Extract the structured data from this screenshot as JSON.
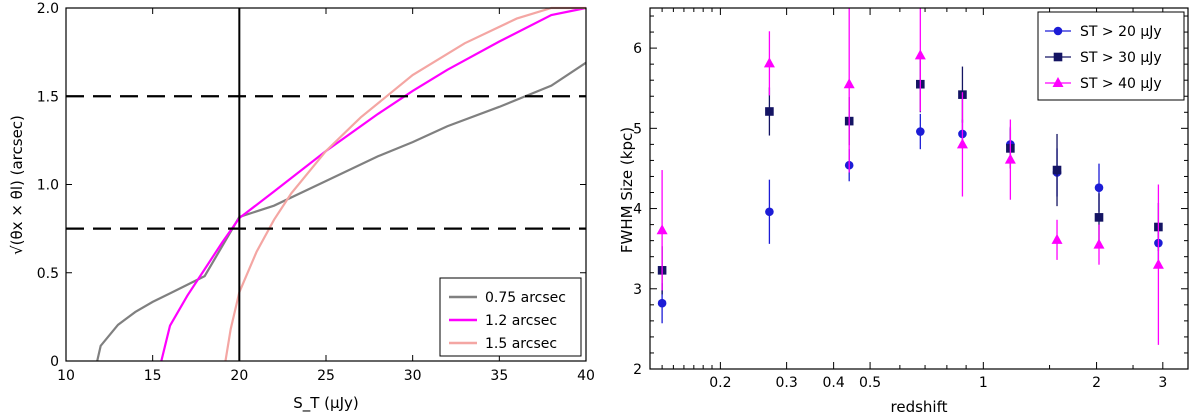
{
  "chart_data": [
    {
      "type": "line",
      "xlabel": "S_T (μJy)",
      "ylabel": "√(θx × θl) (arcsec)",
      "xlim": [
        10,
        40
      ],
      "ylim": [
        0,
        2.0
      ],
      "xticks": [
        10,
        15,
        20,
        25,
        30,
        35,
        40
      ],
      "xtick_labels": [
        "10",
        "15",
        "20",
        "25",
        "30",
        "35",
        "40"
      ],
      "yticks": [
        0,
        0.5,
        1.0,
        1.5,
        2.0
      ],
      "ytick_labels": [
        "0",
        "0.5",
        "1.0",
        "1.5",
        "2.0"
      ],
      "hlines_dashed": [
        0.75,
        1.5
      ],
      "vline_solid": 20,
      "legend_position": "bottom-right",
      "series": [
        {
          "name": "0.75 arcsec",
          "color": "#808080",
          "x0": 11.8,
          "x": [
            11.8,
            12,
            13,
            14,
            15,
            16,
            18,
            20,
            22,
            25,
            28,
            30,
            32,
            35,
            38,
            40
          ],
          "y": [
            0.0,
            0.086,
            0.205,
            0.278,
            0.335,
            0.383,
            0.481,
            0.816,
            0.88,
            1.02,
            1.16,
            1.24,
            1.33,
            1.44,
            1.56,
            1.69
          ]
        },
        {
          "name": "1.2 arcsec",
          "color": "#ff00ff",
          "x0": 15.5,
          "x": [
            15.5,
            16,
            17,
            18,
            19,
            20,
            22,
            25,
            28,
            30,
            32,
            35,
            38,
            40
          ],
          "y": [
            0.0,
            0.2,
            0.37,
            0.52,
            0.67,
            0.81,
            0.96,
            1.19,
            1.4,
            1.53,
            1.65,
            1.81,
            1.96,
            2.06
          ]
        },
        {
          "name": "1.5 arcsec",
          "color": "#f4a6a3",
          "x0": 19.2,
          "x": [
            19.2,
            19.5,
            20,
            21,
            22,
            23,
            25,
            27,
            30,
            33,
            36,
            38,
            40
          ],
          "y": [
            0.0,
            0.18,
            0.39,
            0.62,
            0.8,
            0.95,
            1.19,
            1.38,
            1.62,
            1.8,
            1.94,
            2.01,
            2.07
          ]
        }
      ]
    },
    {
      "type": "scatter",
      "xlabel": "redshift",
      "ylabel": "FWHM Size (kpc)",
      "xscale": "log",
      "xlim": [
        0.13,
        3.5
      ],
      "ylim": [
        2,
        6.5
      ],
      "xticks": [
        0.2,
        0.3,
        0.4,
        0.5,
        1,
        2,
        3
      ],
      "xtick_labels": [
        "0.2",
        "0.3",
        "0.4",
        "0.5",
        "1",
        "2",
        "3"
      ],
      "yticks": [
        2,
        3,
        4,
        5,
        6
      ],
      "ytick_labels": [
        "2",
        "3",
        "4",
        "5",
        "6"
      ],
      "legend_position": "top-right",
      "series": [
        {
          "name": "S_T > 20 μJy",
          "legend_label": "ST > 20 μJy",
          "marker": "circle",
          "color": "#1c1cd6",
          "x": [
            0.14,
            0.27,
            0.44,
            0.68,
            0.88,
            1.18,
            1.57,
            2.03,
            2.92
          ],
          "y": [
            2.82,
            3.96,
            4.54,
            4.96,
            4.93,
            4.8,
            4.45,
            4.26,
            3.57
          ],
          "err": [
            0.25,
            0.4,
            0.2,
            0.22,
            0.18,
            0.22,
            0.3,
            0.3,
            0.22
          ]
        },
        {
          "name": "S_T > 30 μJy",
          "legend_label": "ST > 30 μJy",
          "marker": "square",
          "color": "#141463",
          "x": [
            0.14,
            0.27,
            0.44,
            0.68,
            0.88,
            1.18,
            1.57,
            2.03,
            2.92
          ],
          "y": [
            3.23,
            5.21,
            5.09,
            5.55,
            5.42,
            4.75,
            4.48,
            3.89,
            3.77
          ],
          "err": [
            0.3,
            0.3,
            0.3,
            0.35,
            0.35,
            0.25,
            0.45,
            0.3,
            0.3
          ]
        },
        {
          "name": "S_T > 40 μJy",
          "legend_label": "ST > 40 μJy",
          "marker": "triangle",
          "color": "#ff00ff",
          "x": [
            0.14,
            0.27,
            0.44,
            0.68,
            0.88,
            1.18,
            1.57,
            2.03,
            2.92
          ],
          "y": [
            3.73,
            5.81,
            5.55,
            5.91,
            4.8,
            4.61,
            3.61,
            3.55,
            3.3
          ],
          "err": [
            0.75,
            0.4,
            1.1,
            0.7,
            0.65,
            0.5,
            0.25,
            0.25,
            1.0
          ]
        }
      ]
    }
  ]
}
